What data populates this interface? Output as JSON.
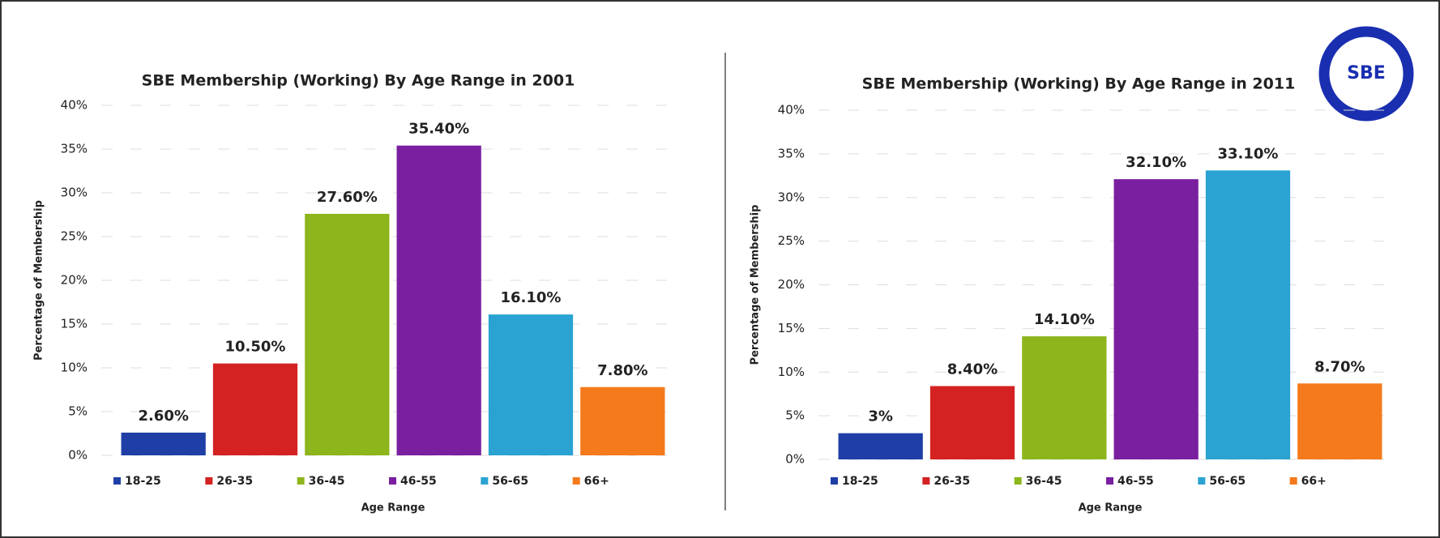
{
  "logo": "SBE",
  "chart_data": [
    {
      "type": "bar",
      "title": "SBE Membership (Working) By Age Range in 2001",
      "x_label": "Age Range",
      "y_label": "Percentage of Membership",
      "categories": [
        "18-25",
        "26-35",
        "36-45",
        "46-55",
        "56-65",
        "66+"
      ],
      "values": [
        2.6,
        10.5,
        27.6,
        35.4,
        16.1,
        7.8
      ],
      "value_labels": [
        "2.60%",
        "10.50%",
        "27.60%",
        "35.40%",
        "16.10%",
        "7.80%"
      ],
      "colors": [
        "#1f3fa6",
        "#d42222",
        "#8db51c",
        "#7a1fa0",
        "#2aa3d2",
        "#f57a1c"
      ],
      "ylim": [
        0,
        40
      ],
      "yticks": [
        {
          "value": 0,
          "label": "0%"
        },
        {
          "value": 5,
          "label": "5%"
        },
        {
          "value": 10,
          "label": "10%"
        },
        {
          "value": 15,
          "label": "15%"
        },
        {
          "value": 20,
          "label": "20%"
        },
        {
          "value": 25,
          "label": "25%"
        },
        {
          "value": 30,
          "label": "30%"
        },
        {
          "value": 35,
          "label": "35%"
        },
        {
          "value": 40,
          "label": "40%"
        }
      ],
      "grid": true,
      "legend": "bottom"
    },
    {
      "type": "bar",
      "title": "SBE Membership (Working) By Age Range in 2011",
      "x_label": "Age Range",
      "y_label": "Percentage of Membership",
      "categories": [
        "18-25",
        "26-35",
        "36-45",
        "46-55",
        "56-65",
        "66+"
      ],
      "values": [
        3,
        8.4,
        14.1,
        32.1,
        33.1,
        8.7
      ],
      "value_labels": [
        "3%",
        "8.40%",
        "14.10%",
        "32.10%",
        "33.10%",
        "8.70%"
      ],
      "colors": [
        "#1f3fa6",
        "#d42222",
        "#8db51c",
        "#7a1fa0",
        "#2aa3d2",
        "#f57a1c"
      ],
      "ylim": [
        0,
        40
      ],
      "yticks": [
        {
          "value": 0,
          "label": "0%"
        },
        {
          "value": 5,
          "label": "5%"
        },
        {
          "value": 10,
          "label": "10%"
        },
        {
          "value": 15,
          "label": "15%"
        },
        {
          "value": 20,
          "label": "20%"
        },
        {
          "value": 25,
          "label": "25%"
        },
        {
          "value": 30,
          "label": "30%"
        },
        {
          "value": 35,
          "label": "35%"
        },
        {
          "value": 40,
          "label": "40%"
        }
      ],
      "grid": true,
      "legend": "bottom"
    }
  ]
}
